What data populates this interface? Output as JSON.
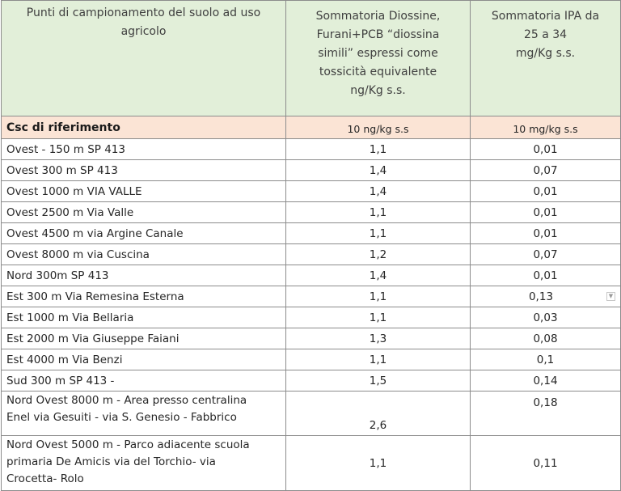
{
  "header": {
    "col1": "Punti di campionamento  del suolo ad uso agricolo",
    "col2_line1": "Sommatoria Diossine,",
    "col2_line2": "Furani+PCB “diossina",
    "col2_line3": "simili” espressi come",
    "col2_line4": "tossicità equivalente",
    "col2_line5": "ng/Kg s.s.",
    "col3_line1": "Sommatoria IPA da",
    "col3_line2": "25 a 34",
    "col3_line3": "mg/Kg s.s."
  },
  "csc": {
    "label": "Csc di riferimento",
    "col2": "10 ng/kg s.s",
    "col3": "10 mg/kg s.s"
  },
  "rows": [
    {
      "point": "Ovest - 150 m SP 413",
      "diox": "1,1",
      "ipa": "0,01"
    },
    {
      "point": "Ovest 300 m SP 413",
      "diox": "1,4",
      "ipa": "0,07"
    },
    {
      "point": "Ovest 1000 m  VIA VALLE",
      "diox": "1,4",
      "ipa": "0,01"
    },
    {
      "point": "Ovest 2500 m Via Valle",
      "diox": "1,1",
      "ipa": "0,01"
    },
    {
      "point": "Ovest 4500 m via Argine Canale",
      "diox": "1,1",
      "ipa": "0,01"
    },
    {
      "point": "Ovest 8000 m via Cuscina",
      "diox": "1,2",
      "ipa": "0,07"
    },
    {
      "point": "Nord  300m  SP 413",
      "diox": "1,4",
      "ipa": "0,01"
    },
    {
      "point": "Est 300 m Via Remesina Esterna",
      "diox": "1,1",
      "ipa": "0,13"
    },
    {
      "point": "Est 1000 m Via Bellaria",
      "diox": "1,1",
      "ipa": "0,03"
    },
    {
      "point": "Est 2000 m Via Giuseppe Faiani",
      "diox": "1,3",
      "ipa": "0,08"
    },
    {
      "point": "Est 4000 m  Via Benzi",
      "diox": "1,1",
      "ipa": "0,1"
    },
    {
      "point": "Sud  300 m SP 413 -",
      "diox": "1,5",
      "ipa": "0,14"
    }
  ],
  "row_nord_ovest_8000": {
    "line1": "Nord Ovest 8000 m - Area presso centralina",
    "line2": "Enel via Gesuiti -  via S. Genesio - Fabbrico",
    "diox": "2,6",
    "ipa": "0,18"
  },
  "row_nord_ovest_5000": {
    "line1": "Nord Ovest 5000 m - Parco adiacente scuola",
    "line2": "primaria De Amicis via del Torchio- via",
    "line3": "Crocetta- Rolo",
    "diox": "1,1",
    "ipa": "0,11"
  }
}
